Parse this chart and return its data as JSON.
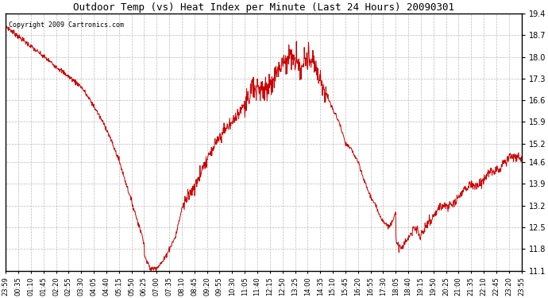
{
  "title": "Outdoor Temp (vs) Heat Index per Minute (Last 24 Hours) 20090301",
  "copyright_text": "Copyright 2009 Cartronics.com",
  "line_color": "#cc0000",
  "background_color": "#ffffff",
  "grid_color": "#bbbbbb",
  "ylim": [
    11.1,
    19.4
  ],
  "yticks": [
    11.1,
    11.8,
    12.5,
    13.2,
    13.9,
    14.6,
    15.2,
    15.9,
    16.6,
    17.3,
    18.0,
    18.7,
    19.4
  ],
  "xtick_labels": [
    "23:59",
    "00:35",
    "01:10",
    "01:45",
    "02:20",
    "02:55",
    "03:30",
    "04:05",
    "04:40",
    "05:15",
    "05:50",
    "06:25",
    "07:00",
    "07:35",
    "08:10",
    "08:45",
    "09:20",
    "09:55",
    "10:30",
    "11:05",
    "11:40",
    "12:15",
    "12:50",
    "13:25",
    "14:00",
    "14:35",
    "15:10",
    "15:45",
    "16:20",
    "16:55",
    "17:30",
    "18:05",
    "18:40",
    "19:15",
    "19:50",
    "20:25",
    "21:00",
    "21:35",
    "22:10",
    "22:45",
    "23:20",
    "23:55"
  ],
  "n_ticks": 42,
  "title_fontsize": 9,
  "copyright_fontsize": 6,
  "tick_fontsize": 6,
  "ytick_fontsize": 7
}
